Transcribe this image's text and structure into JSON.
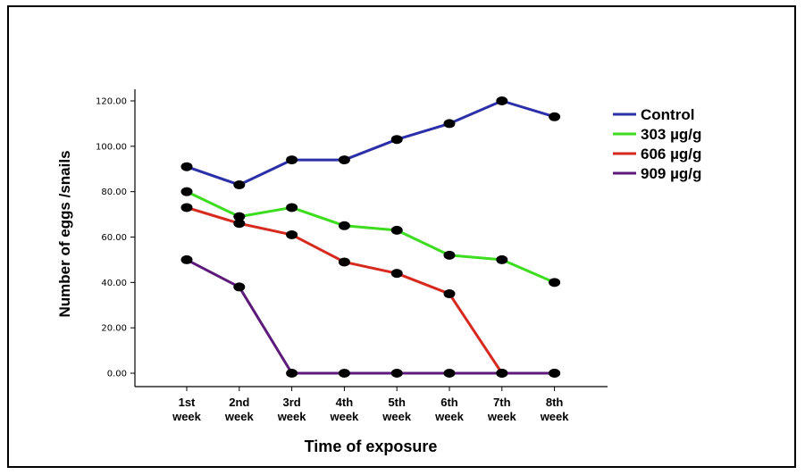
{
  "chart_data": {
    "type": "line",
    "title": "",
    "xlabel": "Time of exposure",
    "ylabel": "Number of eggs /snails",
    "ylim": [
      0,
      120
    ],
    "yticks": [
      "0.00",
      "20.00",
      "40.00",
      "60.00",
      "80.00",
      "100.00",
      "120.00"
    ],
    "categories": [
      [
        "1st",
        "week"
      ],
      [
        "2nd",
        "week"
      ],
      [
        "3rd",
        "week"
      ],
      [
        "4th",
        "week"
      ],
      [
        "5th",
        "week"
      ],
      [
        "6th",
        "week"
      ],
      [
        "7th",
        "week"
      ],
      [
        "8th",
        "week"
      ]
    ],
    "legend_position": "right",
    "grid": false,
    "series": [
      {
        "name": "Control",
        "color": "#2b2fa8",
        "values": [
          91,
          83,
          94,
          94,
          103,
          110,
          120,
          113
        ]
      },
      {
        "name": "303 µg/g",
        "color": "#3ddc1f",
        "values": [
          80,
          69,
          73,
          65,
          63,
          52,
          50,
          40
        ]
      },
      {
        "name": "606 µg/g",
        "color": "#d62a1f",
        "values": [
          73,
          66,
          61,
          49,
          44,
          35,
          0,
          0
        ]
      },
      {
        "name": "909 µg/g",
        "color": "#5c1a7a",
        "values": [
          50,
          38,
          0,
          0,
          0,
          0,
          0,
          0
        ]
      }
    ]
  }
}
